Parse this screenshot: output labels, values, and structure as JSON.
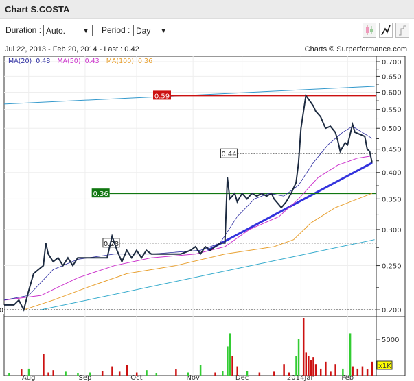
{
  "header": {
    "title": "Chart S.COSTA"
  },
  "controls": {
    "duration_label": "Duration :",
    "duration_value": "Auto.",
    "period_label": "Period :",
    "period_value": "Day"
  },
  "toolbar": {
    "buttons": [
      "candlestick-icon",
      "line-chart-icon",
      "step-chart-icon"
    ]
  },
  "info": {
    "range": "Jul 22, 2013 - Feb 20, 2014 - Last : 0.42",
    "credit": "Charts © Surperformance.com"
  },
  "legend": [
    {
      "label": "MA(20)",
      "value": "0.48",
      "color": "#2a2aa0"
    },
    {
      "label": "MA(50)",
      "value": "0.43",
      "color": "#cc33cc"
    },
    {
      "label": "MA(100)",
      "value": "0.36",
      "color": "#e8a030"
    }
  ],
  "chart_data": {
    "type": "line",
    "scale": "log",
    "ylim": [
      0.195,
      0.72
    ],
    "xlim": [
      0,
      150
    ],
    "y_ticks": [
      "0.700",
      "0.650",
      "0.600",
      "0.550",
      "0.500",
      "0.450",
      "0.400",
      "0.350",
      "0.300",
      "0.250",
      "0.200"
    ],
    "x_ticks": [
      {
        "label": "Aug",
        "day": 10
      },
      {
        "label": "Sep",
        "day": 33
      },
      {
        "label": "Oct",
        "day": 54
      },
      {
        "label": "Nov",
        "day": 77
      },
      {
        "label": "Dec",
        "day": 97
      },
      {
        "label": "2014Jan",
        "day": 121
      },
      {
        "label": "Feb",
        "day": 140
      }
    ],
    "price": [
      [
        0,
        0.205
      ],
      [
        4,
        0.205
      ],
      [
        6,
        0.21
      ],
      [
        8,
        0.2
      ],
      [
        10,
        0.22
      ],
      [
        12,
        0.24
      ],
      [
        14,
        0.245
      ],
      [
        16,
        0.25
      ],
      [
        17,
        0.28
      ],
      [
        18,
        0.265
      ],
      [
        20,
        0.255
      ],
      [
        22,
        0.26
      ],
      [
        24,
        0.25
      ],
      [
        26,
        0.26
      ],
      [
        28,
        0.25
      ],
      [
        30,
        0.26
      ],
      [
        34,
        0.26
      ],
      [
        38,
        0.26
      ],
      [
        42,
        0.26
      ],
      [
        44,
        0.29
      ],
      [
        46,
        0.27
      ],
      [
        48,
        0.255
      ],
      [
        50,
        0.27
      ],
      [
        52,
        0.26
      ],
      [
        54,
        0.27
      ],
      [
        56,
        0.26
      ],
      [
        58,
        0.27
      ],
      [
        60,
        0.265
      ],
      [
        64,
        0.265
      ],
      [
        68,
        0.265
      ],
      [
        72,
        0.265
      ],
      [
        76,
        0.27
      ],
      [
        78,
        0.275
      ],
      [
        80,
        0.265
      ],
      [
        82,
        0.275
      ],
      [
        84,
        0.27
      ],
      [
        86,
        0.275
      ],
      [
        88,
        0.28
      ],
      [
        90,
        0.28
      ],
      [
        91,
        0.39
      ],
      [
        92,
        0.35
      ],
      [
        94,
        0.36
      ],
      [
        95,
        0.345
      ],
      [
        97,
        0.36
      ],
      [
        99,
        0.35
      ],
      [
        101,
        0.36
      ],
      [
        103,
        0.355
      ],
      [
        105,
        0.36
      ],
      [
        107,
        0.355
      ],
      [
        109,
        0.36
      ],
      [
        110,
        0.35
      ],
      [
        112,
        0.34
      ],
      [
        113,
        0.335
      ],
      [
        115,
        0.345
      ],
      [
        117,
        0.36
      ],
      [
        118,
        0.37
      ],
      [
        119,
        0.38
      ],
      [
        120,
        0.42
      ],
      [
        121,
        0.5
      ],
      [
        123,
        0.59
      ],
      [
        124,
        0.58
      ],
      [
        126,
        0.56
      ],
      [
        127,
        0.545
      ],
      [
        129,
        0.53
      ],
      [
        131,
        0.5
      ],
      [
        133,
        0.505
      ],
      [
        135,
        0.49
      ],
      [
        136,
        0.47
      ],
      [
        137,
        0.445
      ],
      [
        139,
        0.465
      ],
      [
        140,
        0.46
      ],
      [
        142,
        0.51
      ],
      [
        143,
        0.49
      ],
      [
        145,
        0.485
      ],
      [
        147,
        0.48
      ],
      [
        148,
        0.45
      ],
      [
        149,
        0.445
      ],
      [
        150,
        0.42
      ]
    ],
    "ma20": [
      [
        0,
        0.21
      ],
      [
        10,
        0.215
      ],
      [
        20,
        0.245
      ],
      [
        30,
        0.258
      ],
      [
        45,
        0.265
      ],
      [
        60,
        0.265
      ],
      [
        80,
        0.27
      ],
      [
        88,
        0.28
      ],
      [
        95,
        0.32
      ],
      [
        102,
        0.35
      ],
      [
        108,
        0.36
      ],
      [
        114,
        0.355
      ],
      [
        120,
        0.375
      ],
      [
        126,
        0.42
      ],
      [
        132,
        0.46
      ],
      [
        138,
        0.49
      ],
      [
        142,
        0.505
      ],
      [
        150,
        0.475
      ]
    ],
    "ma50": [
      [
        0,
        0.21
      ],
      [
        15,
        0.215
      ],
      [
        30,
        0.235
      ],
      [
        45,
        0.25
      ],
      [
        60,
        0.26
      ],
      [
        78,
        0.265
      ],
      [
        90,
        0.275
      ],
      [
        100,
        0.3
      ],
      [
        112,
        0.32
      ],
      [
        120,
        0.35
      ],
      [
        128,
        0.39
      ],
      [
        136,
        0.415
      ],
      [
        144,
        0.43
      ],
      [
        150,
        0.435
      ]
    ],
    "ma100": [
      [
        8,
        0.2
      ],
      [
        20,
        0.21
      ],
      [
        35,
        0.225
      ],
      [
        50,
        0.24
      ],
      [
        70,
        0.25
      ],
      [
        90,
        0.265
      ],
      [
        110,
        0.275
      ],
      [
        118,
        0.285
      ],
      [
        125,
        0.31
      ],
      [
        135,
        0.335
      ],
      [
        150,
        0.36
      ]
    ],
    "levels": [
      {
        "label": "0.59",
        "value": 0.59,
        "color": "#cc1111",
        "style": "solid"
      },
      {
        "label": "0.36",
        "value": 0.36,
        "color": "#117711",
        "style": "solid"
      },
      {
        "label": "0.44",
        "value": 0.44,
        "style": "dashed"
      },
      {
        "label": "0.28",
        "value": 0.28,
        "style": "dashed"
      },
      {
        "label": "0.20",
        "value": 0.2,
        "style": "dashed"
      }
    ],
    "trendlines": [
      {
        "color": "#3399cc",
        "from": [
          0,
          0.565
        ],
        "to": [
          151,
          0.618
        ]
      },
      {
        "color": "#33aacc",
        "from": [
          15,
          0.2
        ],
        "to": [
          151,
          0.285
        ]
      },
      {
        "color": "#3333dd",
        "from": [
          83,
          0.27
        ],
        "to": [
          150,
          0.42
        ]
      }
    ],
    "volume": {
      "unit_label": "x1K",
      "tick": "5000",
      "ymax": 7500,
      "bars": [
        [
          2,
          300,
          "g"
        ],
        [
          7,
          800,
          "r"
        ],
        [
          10,
          900,
          "g"
        ],
        [
          16,
          2800,
          "r"
        ],
        [
          18,
          400,
          "r"
        ],
        [
          20,
          700,
          "r"
        ],
        [
          25,
          500,
          "g"
        ],
        [
          30,
          300,
          "g"
        ],
        [
          35,
          400,
          "g"
        ],
        [
          40,
          600,
          "r"
        ],
        [
          44,
          1200,
          "r"
        ],
        [
          47,
          500,
          "r"
        ],
        [
          50,
          1400,
          "r"
        ],
        [
          54,
          400,
          "r"
        ],
        [
          58,
          700,
          "g"
        ],
        [
          62,
          300,
          "g"
        ],
        [
          70,
          800,
          "r"
        ],
        [
          75,
          400,
          "g"
        ],
        [
          80,
          1400,
          "g"
        ],
        [
          86,
          400,
          "r"
        ],
        [
          89,
          600,
          "g"
        ],
        [
          91,
          3800,
          "g"
        ],
        [
          92,
          5500,
          "g"
        ],
        [
          93,
          2500,
          "r"
        ],
        [
          95,
          1200,
          "r"
        ],
        [
          99,
          600,
          "g"
        ],
        [
          104,
          400,
          "r"
        ],
        [
          110,
          500,
          "r"
        ],
        [
          114,
          1500,
          "r"
        ],
        [
          116,
          400,
          "r"
        ],
        [
          119,
          2500,
          "g"
        ],
        [
          120,
          4800,
          "g"
        ],
        [
          122,
          7500,
          "r"
        ],
        [
          123,
          3000,
          "r"
        ],
        [
          124,
          2500,
          "r"
        ],
        [
          125,
          2000,
          "r"
        ],
        [
          126,
          2400,
          "r"
        ],
        [
          127,
          1500,
          "r"
        ],
        [
          129,
          900,
          "r"
        ],
        [
          131,
          1800,
          "r"
        ],
        [
          133,
          500,
          "r"
        ],
        [
          135,
          1500,
          "r"
        ],
        [
          138,
          900,
          "g"
        ],
        [
          141,
          5500,
          "g"
        ],
        [
          142,
          1200,
          "r"
        ],
        [
          144,
          900,
          "r"
        ],
        [
          146,
          1200,
          "r"
        ],
        [
          148,
          800,
          "r"
        ],
        [
          150,
          1800,
          "r"
        ]
      ]
    }
  }
}
